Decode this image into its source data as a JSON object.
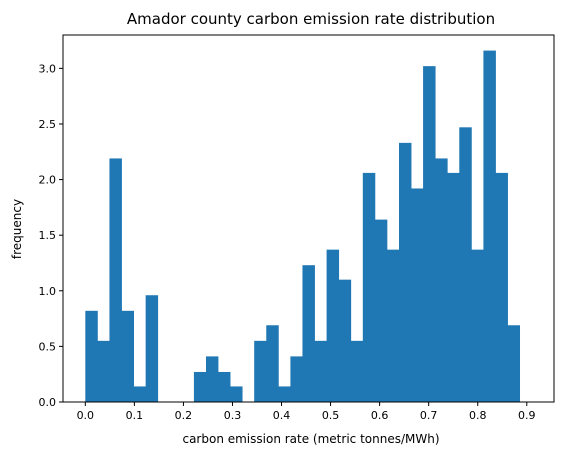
{
  "chart_data": {
    "type": "bar",
    "title": "Amador county carbon emission rate distribution",
    "xlabel": "carbon emission rate (metric tonnes/MWh)",
    "ylabel": "frequency",
    "xlim": [
      -0.0455,
      0.9555
    ],
    "ylim": [
      0,
      3.3
    ],
    "xticks": [
      "0.0",
      "0.1",
      "0.2",
      "0.3",
      "0.4",
      "0.5",
      "0.6",
      "0.7",
      "0.8",
      "0.9"
    ],
    "yticks": [
      "0.0",
      "0.5",
      "1.0",
      "1.5",
      "2.0",
      "2.5",
      "3.0"
    ],
    "grid": false,
    "bar_color": "#1f77b4",
    "bins": [
      {
        "x0": 0.0,
        "x1": 0.0246,
        "value": 0.82
      },
      {
        "x0": 0.0246,
        "x1": 0.0492,
        "value": 0.55
      },
      {
        "x0": 0.0492,
        "x1": 0.0738,
        "value": 2.19
      },
      {
        "x0": 0.0738,
        "x1": 0.0984,
        "value": 0.82
      },
      {
        "x0": 0.0984,
        "x1": 0.123,
        "value": 0.14
      },
      {
        "x0": 0.123,
        "x1": 0.1476,
        "value": 0.96
      },
      {
        "x0": 0.1476,
        "x1": 0.1722,
        "value": 0.0
      },
      {
        "x0": 0.1722,
        "x1": 0.1968,
        "value": 0.0
      },
      {
        "x0": 0.1968,
        "x1": 0.2214,
        "value": 0.0
      },
      {
        "x0": 0.2214,
        "x1": 0.246,
        "value": 0.27
      },
      {
        "x0": 0.246,
        "x1": 0.2705,
        "value": 0.41
      },
      {
        "x0": 0.2705,
        "x1": 0.2951,
        "value": 0.27
      },
      {
        "x0": 0.2951,
        "x1": 0.3197,
        "value": 0.14
      },
      {
        "x0": 0.3197,
        "x1": 0.3443,
        "value": 0.0
      },
      {
        "x0": 0.3443,
        "x1": 0.3689,
        "value": 0.55
      },
      {
        "x0": 0.3689,
        "x1": 0.3935,
        "value": 0.69
      },
      {
        "x0": 0.3935,
        "x1": 0.4181,
        "value": 0.14
      },
      {
        "x0": 0.4181,
        "x1": 0.4427,
        "value": 0.41
      },
      {
        "x0": 0.4427,
        "x1": 0.4673,
        "value": 1.23
      },
      {
        "x0": 0.4673,
        "x1": 0.4919,
        "value": 0.55
      },
      {
        "x0": 0.4919,
        "x1": 0.5165,
        "value": 1.37
      },
      {
        "x0": 0.5165,
        "x1": 0.5411,
        "value": 1.1
      },
      {
        "x0": 0.5411,
        "x1": 0.5657,
        "value": 0.55
      },
      {
        "x0": 0.5657,
        "x1": 0.5903,
        "value": 2.06
      },
      {
        "x0": 0.5903,
        "x1": 0.6149,
        "value": 1.64
      },
      {
        "x0": 0.6149,
        "x1": 0.6395,
        "value": 1.37
      },
      {
        "x0": 0.6395,
        "x1": 0.6641,
        "value": 2.33
      },
      {
        "x0": 0.6641,
        "x1": 0.6886,
        "value": 1.92
      },
      {
        "x0": 0.6886,
        "x1": 0.7132,
        "value": 3.02
      },
      {
        "x0": 0.7132,
        "x1": 0.7378,
        "value": 2.19
      },
      {
        "x0": 0.7378,
        "x1": 0.7624,
        "value": 2.06
      },
      {
        "x0": 0.7624,
        "x1": 0.787,
        "value": 2.47
      },
      {
        "x0": 0.787,
        "x1": 0.8116,
        "value": 1.37
      },
      {
        "x0": 0.8116,
        "x1": 0.8362,
        "value": 3.16
      },
      {
        "x0": 0.8362,
        "x1": 0.8608,
        "value": 2.06
      },
      {
        "x0": 0.8608,
        "x1": 0.8854,
        "value": 0.69
      }
    ]
  }
}
